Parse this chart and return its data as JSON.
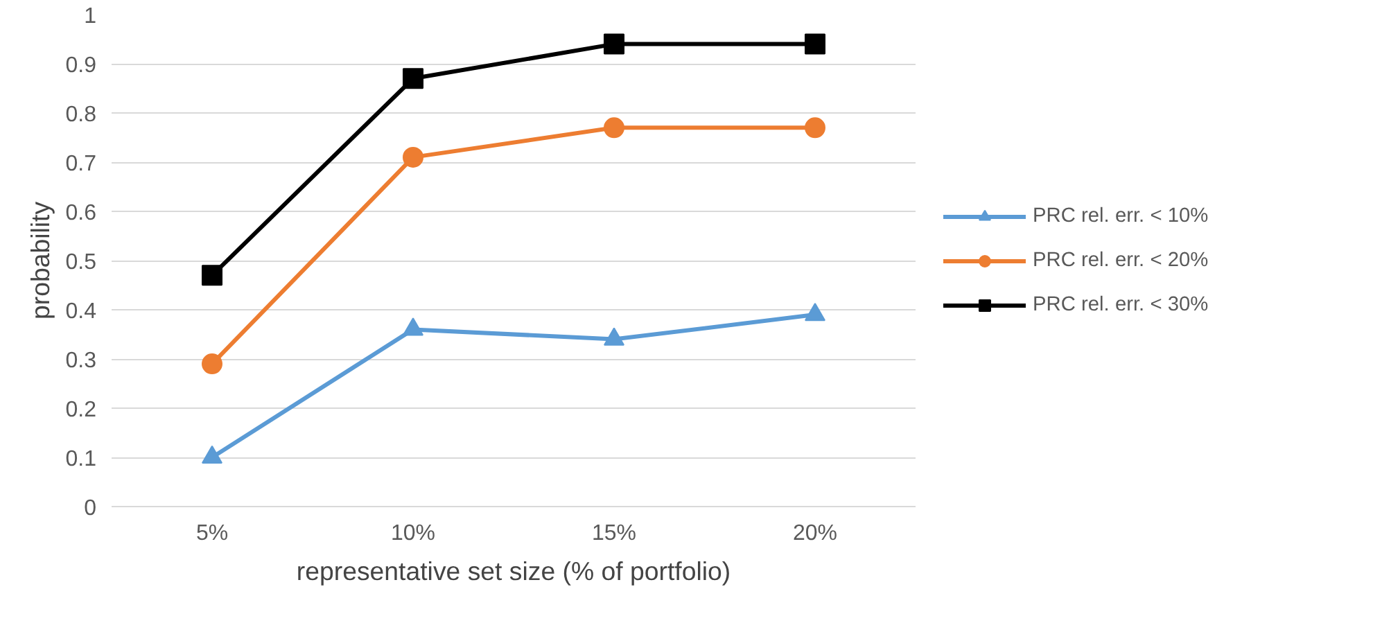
{
  "chart_data": {
    "type": "line",
    "xlabel": "representative set size (% of portfolio)",
    "ylabel": "probability",
    "categories": [
      "5%",
      "10%",
      "15%",
      "20%"
    ],
    "series": [
      {
        "name": "PRC rel. err. < 10%",
        "color": "#5b9bd5",
        "marker": "triangle",
        "values": [
          0.1,
          0.36,
          0.34,
          0.39
        ]
      },
      {
        "name": "PRC rel. err. < 20%",
        "color": "#ed7d31",
        "marker": "circle",
        "values": [
          0.29,
          0.71,
          0.77,
          0.77
        ]
      },
      {
        "name": "PRC rel. err. < 30%",
        "color": "#000000",
        "marker": "square",
        "values": [
          0.47,
          0.87,
          0.94,
          0.94
        ]
      }
    ],
    "ylim": [
      0,
      1
    ],
    "yticks": [
      0,
      0.1,
      0.2,
      0.3,
      0.4,
      0.5,
      0.6,
      0.7,
      0.8,
      0.9,
      1
    ],
    "grid": "y",
    "legend": "right",
    "line_style": "solid"
  }
}
